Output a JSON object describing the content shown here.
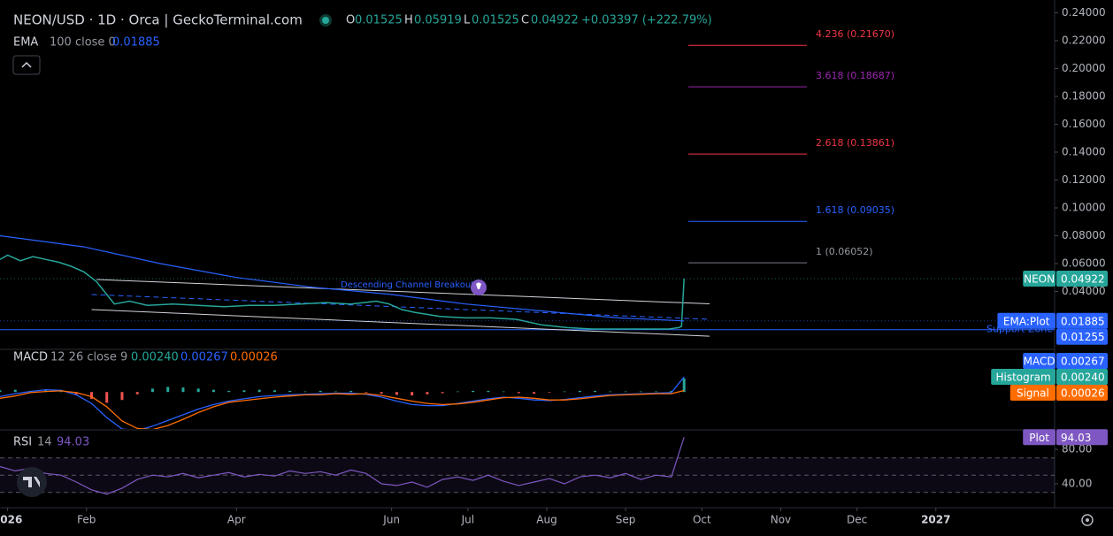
{
  "chart_data": [
    {
      "type": "line",
      "title": "NEON/USD · 1D · Orca | GeckoTerminal.com",
      "ohlc": {
        "o_label": "O",
        "o": 0.01525,
        "h_label": "H",
        "h": 0.05919,
        "l_label": "L",
        "l": 0.01525,
        "c_label": "C",
        "c": 0.04922,
        "change": "+0.03397 (+222.79%)"
      },
      "ema_legend": {
        "name": "EMA",
        "params": "100 close 0"
      },
      "xlim": [
        -3,
        411
      ],
      "xticks": [
        {
          "value": 0,
          "label": "2026"
        },
        {
          "value": 31,
          "label": "Feb"
        },
        {
          "value": 90,
          "label": "Apr"
        },
        {
          "value": 151,
          "label": "Jun"
        },
        {
          "value": 181,
          "label": "Jul"
        },
        {
          "value": 212,
          "label": "Aug"
        },
        {
          "value": 243,
          "label": "Sep"
        },
        {
          "value": 273,
          "label": "Oct"
        },
        {
          "value": 304,
          "label": "Nov"
        },
        {
          "value": 334,
          "label": "Dec"
        },
        {
          "value": 365,
          "label": "2027"
        }
      ],
      "ylim": [
        0,
        0.2492
      ],
      "yticks": [
        {
          "value": 0.04,
          "label": "0.04000"
        },
        {
          "value": 0.06,
          "label": "0.06000"
        },
        {
          "value": 0.08,
          "label": "0.08000"
        },
        {
          "value": 0.1,
          "label": "0.10000"
        },
        {
          "value": 0.12,
          "label": "0.12000"
        },
        {
          "value": 0.14,
          "label": "0.14000"
        },
        {
          "value": 0.16,
          "label": "0.16000"
        },
        {
          "value": 0.18,
          "label": "0.18000"
        },
        {
          "value": 0.2,
          "label": "0.20000"
        },
        {
          "value": 0.22,
          "label": "0.22000"
        },
        {
          "value": 0.24,
          "label": "0.24000"
        }
      ],
      "series": [
        {
          "name": "NEON",
          "color": "#26a69a",
          "x": [
            -3,
            0,
            5,
            10,
            15,
            20,
            25,
            30,
            35,
            38,
            42,
            48,
            55,
            65,
            75,
            85,
            95,
            105,
            115,
            125,
            135,
            140,
            145,
            150,
            155,
            160,
            170,
            180,
            190,
            200,
            210,
            220,
            230,
            240,
            250,
            260,
            264,
            265,
            266
          ],
          "values": [
            0.063,
            0.066,
            0.062,
            0.065,
            0.063,
            0.061,
            0.058,
            0.054,
            0.047,
            0.04,
            0.031,
            0.033,
            0.03,
            0.031,
            0.03,
            0.029,
            0.03,
            0.03,
            0.031,
            0.032,
            0.031,
            0.032,
            0.033,
            0.031,
            0.027,
            0.025,
            0.022,
            0.021,
            0.021,
            0.02,
            0.016,
            0.014,
            0.013,
            0.013,
            0.013,
            0.013,
            0.014,
            0.015,
            0.04922
          ]
        },
        {
          "name": "EMA:Plot",
          "color": "#2962ff",
          "x": [
            -3,
            30,
            60,
            90,
            120,
            150,
            180,
            210,
            240,
            266
          ],
          "values": [
            0.08,
            0.072,
            0.06,
            0.05,
            0.043,
            0.038,
            0.031,
            0.026,
            0.021,
            0.01885
          ]
        }
      ],
      "support": {
        "label": "Support Zone",
        "value": 0.01255,
        "color": "#2962ff"
      },
      "channel": {
        "label": "Descending Channel Breakout",
        "color": "#d1d4dc",
        "upper": {
          "x": [
            35,
            276
          ],
          "values": [
            0.0486,
            0.0311
          ]
        },
        "middle": {
          "x": [
            33,
            276
          ],
          "values": [
            0.0378,
            0.02
          ]
        },
        "lower": {
          "x": [
            33,
            276
          ],
          "values": [
            0.027,
            0.0079
          ]
        }
      },
      "fib": [
        {
          "label": "4.236 (0.21670)",
          "value": 0.2167,
          "color": "#f23645"
        },
        {
          "label": "3.618 (0.18687)",
          "value": 0.18687,
          "color": "#9c27b0"
        },
        {
          "label": "2.618 (0.13861)",
          "value": 0.13861,
          "color": "#f23645"
        },
        {
          "label": "1.618 (0.09035)",
          "value": 0.09035,
          "color": "#2962ff"
        },
        {
          "label": "1 (0.06052)",
          "value": 0.06052,
          "color": "#787b86"
        }
      ]
    },
    {
      "type": "macd",
      "title": "MACD",
      "params": "12 26 close 9",
      "ylim": [
        -0.0065,
        0.0075
      ],
      "x": [
        -3,
        3,
        9,
        15,
        21,
        27,
        33,
        39,
        45,
        51,
        57,
        63,
        69,
        75,
        81,
        87,
        93,
        99,
        105,
        111,
        117,
        123,
        129,
        135,
        141,
        147,
        153,
        159,
        165,
        171,
        177,
        183,
        189,
        195,
        201,
        207,
        213,
        219,
        225,
        231,
        237,
        243,
        249,
        255,
        261,
        266
      ],
      "series": [
        {
          "name": "Histogram",
          "color": "#26a69a",
          "negative_color": "#ef5350",
          "values": [
            0.0003,
            0.0004,
            0.0002,
            0.0003,
            0.0001,
            -0.0004,
            -0.0012,
            -0.0019,
            -0.0014,
            -0.0004,
            0.0006,
            0.0009,
            0.0008,
            0.0006,
            0.0004,
            0.0002,
            0.0003,
            0.0004,
            0.0003,
            0.0002,
            0.0001,
            0.0002,
            0.0001,
            0.0002,
            -0.0001,
            -0.0003,
            -0.0005,
            -0.0006,
            -0.0004,
            -0.0002,
            0.0001,
            0.0002,
            0.0002,
            0.0001,
            -0.0002,
            -0.0003,
            -0.0001,
            0.0001,
            0.0002,
            0.0002,
            0.0001,
            0.0001,
            0.0001,
            0.0001,
            0.0002,
            0.0024
          ],
          "value_labels": [
            null,
            null,
            null,
            null,
            null,
            null,
            null,
            null,
            null,
            null,
            null,
            null,
            null,
            null,
            null,
            null,
            null,
            null,
            null,
            null,
            null,
            null,
            null,
            null,
            null,
            null,
            null,
            null,
            null,
            null,
            null,
            null,
            null,
            null,
            null,
            null,
            null,
            null,
            null,
            null,
            null,
            null,
            null,
            null,
            null,
            "0.00240"
          ]
        },
        {
          "name": "MACD",
          "color": "#2962ff",
          "values": [
            -0.0008,
            -0.0003,
            0.0001,
            0.0004,
            0.0003,
            -0.0005,
            -0.002,
            -0.0045,
            -0.0065,
            -0.0068,
            -0.006,
            -0.005,
            -0.004,
            -0.003,
            -0.0022,
            -0.0016,
            -0.0012,
            -0.0008,
            -0.0006,
            -0.0005,
            -0.0004,
            -0.0003,
            -0.0002,
            -0.0002,
            -0.0004,
            -0.0009,
            -0.0016,
            -0.0022,
            -0.0024,
            -0.0024,
            -0.002,
            -0.0016,
            -0.0012,
            -0.0009,
            -0.0011,
            -0.0014,
            -0.0015,
            -0.0013,
            -0.001,
            -0.0007,
            -0.0005,
            -0.0004,
            -0.0003,
            -0.0002,
            -0.0001,
            0.00267
          ]
        },
        {
          "name": "Signal",
          "color": "#ff6d00",
          "values": [
            -0.0011,
            -0.0007,
            -0.0001,
            0.0001,
            0.0002,
            -0.0001,
            -0.0008,
            -0.0026,
            -0.0051,
            -0.0064,
            -0.0066,
            -0.0059,
            -0.0048,
            -0.0036,
            -0.0026,
            -0.0018,
            -0.0015,
            -0.0012,
            -0.0009,
            -0.0007,
            -0.0005,
            -0.0005,
            -0.0003,
            -0.0004,
            -0.0003,
            -0.0006,
            -0.0011,
            -0.0016,
            -0.002,
            -0.0022,
            -0.0021,
            -0.0018,
            -0.0014,
            -0.001,
            -0.0009,
            -0.0011,
            -0.0014,
            -0.0014,
            -0.0012,
            -0.0009,
            -0.0006,
            -0.0005,
            -0.0004,
            -0.0003,
            -0.0003,
            0.00026
          ]
        }
      ]
    },
    {
      "type": "rsi",
      "title": "RSI",
      "params": "14",
      "ylim": [
        16.4,
        101.5
      ],
      "yticks": [
        {
          "value": 80,
          "label": "80.00"
        },
        {
          "value": 40,
          "label": "40.00"
        }
      ],
      "band": {
        "upper": 70,
        "middle": 50,
        "lower": 30,
        "color": "#7e57c2"
      },
      "x": [
        -3,
        3,
        9,
        15,
        21,
        27,
        33,
        39,
        45,
        51,
        57,
        63,
        69,
        75,
        81,
        87,
        93,
        99,
        105,
        111,
        117,
        123,
        129,
        135,
        141,
        147,
        153,
        159,
        165,
        171,
        177,
        183,
        189,
        195,
        201,
        207,
        213,
        219,
        225,
        231,
        237,
        243,
        249,
        255,
        261,
        266
      ],
      "series": [
        {
          "name": "Plot",
          "color": "#7e57c2",
          "values": [
            60,
            55,
            58,
            52,
            50,
            42,
            33,
            28,
            35,
            45,
            50,
            48,
            52,
            47,
            50,
            53,
            48,
            51,
            49,
            55,
            52,
            54,
            50,
            56,
            52,
            40,
            38,
            42,
            36,
            45,
            48,
            44,
            50,
            43,
            38,
            42,
            46,
            40,
            48,
            50,
            47,
            52,
            45,
            50,
            48,
            94.03
          ]
        }
      ]
    }
  ]
}
